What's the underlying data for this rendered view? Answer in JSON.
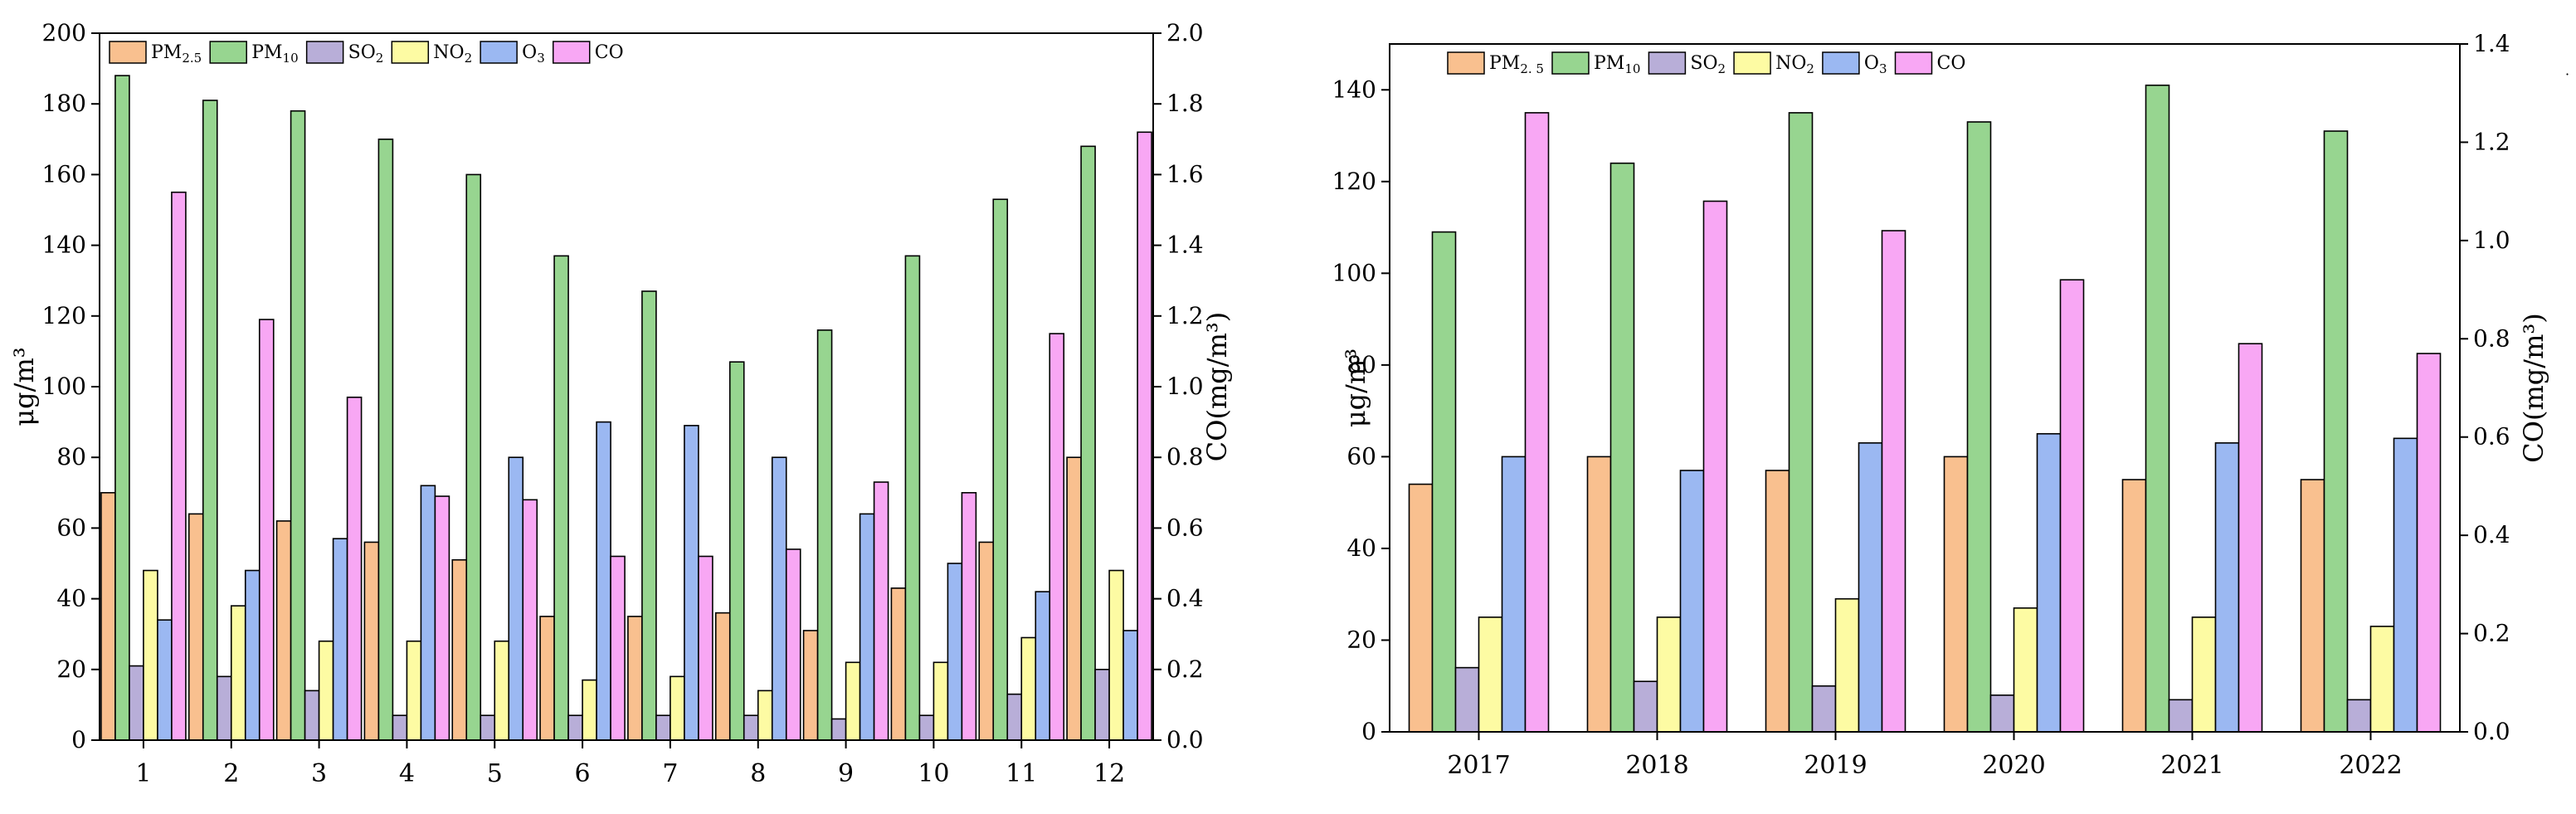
{
  "colors": {
    "PM2.5": "#f9c08f",
    "PM10": "#97d590",
    "SO2": "#b8aed8",
    "NO2": "#fdfba3",
    "O3": "#9bb8f2",
    "CO": "#f8a7f4"
  },
  "chart_data": [
    {
      "type": "bar",
      "title": "",
      "xlabel": "",
      "ylabel": "μg/m³",
      "y2label": "CO(mg/m³)",
      "ylim": [
        0,
        200
      ],
      "y2lim": [
        0,
        2.0
      ],
      "yticks": [
        "0",
        "20",
        "40",
        "60",
        "80",
        "100",
        "120",
        "140",
        "160",
        "180",
        "200"
      ],
      "y2ticks": [
        "0.0",
        "0.2",
        "0.4",
        "0.6",
        "0.8",
        "1.0",
        "1.2",
        "1.4",
        "1.6",
        "1.8",
        "2.0"
      ],
      "categories": [
        "1",
        "2",
        "3",
        "4",
        "5",
        "6",
        "7",
        "8",
        "9",
        "10",
        "11",
        "12"
      ],
      "legend_position": "top-left",
      "series": [
        {
          "name": "PM2.5",
          "label_main": "PM",
          "label_sub": "2.5",
          "axis": "left",
          "values": [
            70,
            64,
            62,
            56,
            51,
            35,
            35,
            36,
            31,
            43,
            56,
            80
          ]
        },
        {
          "name": "PM10",
          "label_main": "PM",
          "label_sub": "10",
          "axis": "left",
          "values": [
            188,
            181,
            178,
            170,
            160,
            137,
            127,
            107,
            116,
            137,
            153,
            168
          ]
        },
        {
          "name": "SO2",
          "label_main": "SO",
          "label_sub": "2",
          "axis": "left",
          "values": [
            21,
            18,
            14,
            7,
            7,
            7,
            7,
            7,
            6,
            7,
            13,
            20
          ]
        },
        {
          "name": "NO2",
          "label_main": "NO",
          "label_sub": "2",
          "axis": "left",
          "values": [
            48,
            38,
            28,
            28,
            28,
            17,
            18,
            14,
            22,
            22,
            29,
            48
          ]
        },
        {
          "name": "O3",
          "label_main": "O",
          "label_sub": "3",
          "axis": "left",
          "values": [
            34,
            48,
            57,
            72,
            80,
            90,
            89,
            80,
            64,
            50,
            42,
            31
          ]
        },
        {
          "name": "CO",
          "label_main": "CO",
          "label_sub": "",
          "axis": "right",
          "values": [
            1.55,
            1.19,
            0.97,
            0.69,
            0.68,
            0.52,
            0.52,
            0.54,
            0.73,
            0.7,
            1.15,
            1.72
          ]
        }
      ]
    },
    {
      "type": "bar",
      "title": "",
      "xlabel": "",
      "ylabel": "μg/m³",
      "y2label": "CO(mg/m³)",
      "ylim": [
        0,
        150
      ],
      "y2lim": [
        0,
        1.4
      ],
      "yticks": [
        "0",
        "20",
        "40",
        "60",
        "80",
        "100",
        "120",
        "140"
      ],
      "y2ticks": [
        "0.0",
        "0.2",
        "0.4",
        "0.6",
        "0.8",
        "1.0",
        "1.2",
        "1.4"
      ],
      "categories": [
        "2017",
        "2018",
        "2019",
        "2020",
        "2021",
        "2022"
      ],
      "legend_position": "top-left",
      "series": [
        {
          "name": "PM2.5",
          "label_main": "PM",
          "label_sub": "2. 5",
          "axis": "left",
          "values": [
            54,
            60,
            57,
            60,
            55,
            55
          ]
        },
        {
          "name": "PM10",
          "label_main": "PM",
          "label_sub": "10",
          "axis": "left",
          "values": [
            109,
            124,
            135,
            133,
            141,
            131
          ]
        },
        {
          "name": "SO2",
          "label_main": "SO",
          "label_sub": "2",
          "axis": "left",
          "values": [
            14,
            11,
            10,
            8,
            7,
            7
          ]
        },
        {
          "name": "NO2",
          "label_main": "NO",
          "label_sub": "2",
          "axis": "left",
          "values": [
            25,
            25,
            29,
            27,
            25,
            23
          ]
        },
        {
          "name": "O3",
          "label_main": "O",
          "label_sub": "3",
          "axis": "left",
          "values": [
            60,
            57,
            63,
            65,
            63,
            64
          ]
        },
        {
          "name": "CO",
          "label_main": "CO",
          "label_sub": "",
          "axis": "right",
          "values": [
            1.26,
            1.08,
            1.02,
            0.92,
            0.79,
            0.77
          ]
        }
      ]
    }
  ]
}
